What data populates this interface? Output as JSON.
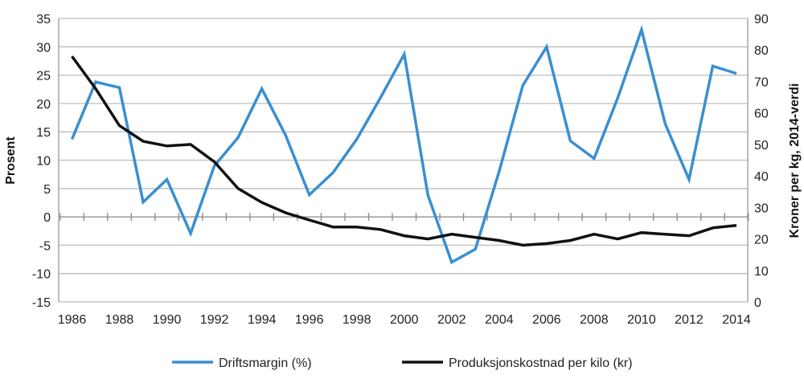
{
  "chart_data": {
    "type": "line",
    "title": "",
    "xlabel": "",
    "ylabel": "Prosent",
    "y2label": "Kroner per kg, 2014-verdi",
    "ylim": [
      -15,
      35
    ],
    "y2lim": [
      0,
      90
    ],
    "yticks": [
      "35",
      "30",
      "25",
      "20",
      "15",
      "10",
      "5",
      "0",
      "-5",
      "-10",
      "-15"
    ],
    "y2ticks": [
      "90",
      "80",
      "70",
      "60",
      "50",
      "40",
      "30",
      "20",
      "10",
      "0"
    ],
    "xtick_labels": [
      "1986",
      "1988",
      "1990",
      "1992",
      "1994",
      "1996",
      "1998",
      "2000",
      "2002",
      "2004",
      "2006",
      "2008",
      "2010",
      "2012",
      "2014"
    ],
    "grid": true,
    "legend_position": "bottom",
    "x": [
      1986,
      1987,
      1988,
      1989,
      1990,
      1991,
      1992,
      1993,
      1994,
      1995,
      1996,
      1997,
      1998,
      1999,
      2000,
      2001,
      2002,
      2003,
      2004,
      2005,
      2006,
      2007,
      2008,
      2009,
      2010,
      2011,
      2012,
      2013,
      2014
    ],
    "series": [
      {
        "name": "Driftsmargin (%)",
        "axis": "left",
        "color": "#3a8fd0",
        "values": [
          13.7,
          23.8,
          22.8,
          2.6,
          6.6,
          -2.9,
          9.0,
          14.0,
          22.6,
          14.4,
          3.9,
          7.8,
          13.7,
          21.0,
          28.7,
          3.8,
          -8.0,
          -5.7,
          8.0,
          23.2,
          30.0,
          13.4,
          10.3,
          21.0,
          33.0,
          16.4,
          6.6,
          26.6,
          25.3
        ]
      },
      {
        "name": "Produksjonskostnad per kilo (kr)",
        "axis": "right",
        "color": "#111111",
        "values": [
          78,
          67.7,
          56,
          51,
          49.5,
          50,
          44.5,
          36,
          31.6,
          28.3,
          26,
          23.8,
          23.8,
          23,
          21,
          20,
          21.5,
          20.5,
          19.5,
          18,
          18.5,
          19.5,
          21.5,
          20,
          22,
          21.5,
          21,
          23.5,
          24.3
        ]
      }
    ]
  }
}
